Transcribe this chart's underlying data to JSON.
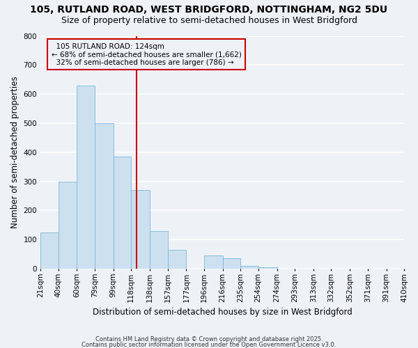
{
  "title1": "105, RUTLAND ROAD, WEST BRIDGFORD, NOTTINGHAM, NG2 5DU",
  "title2": "Size of property relative to semi-detached houses in West Bridgford",
  "xlabel": "Distribution of semi-detached houses by size in West Bridgford",
  "ylabel": "Number of semi-detached properties",
  "footnote1": "Contains HM Land Registry data © Crown copyright and database right 2025.",
  "footnote2": "Contains public sector information licensed under the Open Government Licence v3.0.",
  "bin_labels": [
    "21sqm",
    "40sqm",
    "60sqm",
    "79sqm",
    "99sqm",
    "118sqm",
    "138sqm",
    "157sqm",
    "177sqm",
    "196sqm",
    "216sqm",
    "235sqm",
    "254sqm",
    "274sqm",
    "293sqm",
    "313sqm",
    "332sqm",
    "352sqm",
    "371sqm",
    "391sqm",
    "410sqm"
  ],
  "bin_edges": [
    21,
    40,
    60,
    79,
    99,
    118,
    138,
    157,
    177,
    196,
    216,
    235,
    254,
    274,
    293,
    313,
    332,
    352,
    371,
    391,
    410
  ],
  "bar_heights": [
    125,
    300,
    630,
    500,
    385,
    270,
    130,
    65,
    0,
    45,
    35,
    10,
    5,
    0,
    0,
    0,
    0,
    0,
    0,
    0
  ],
  "bar_color": "#cce0f0",
  "bar_edge_color": "#7ab8d9",
  "property_value": 124,
  "vline_color": "#cc0000",
  "annotation_box_color": "#cc0000",
  "annotation_text_color": "#000000",
  "annotation_label": "105 RUTLAND ROAD: 124sqm",
  "annotation_pct_smaller": "68% of semi-detached houses are smaller (1,662)",
  "annotation_pct_larger": "32% of semi-detached houses are larger (786)",
  "ylim": [
    0,
    800
  ],
  "yticks": [
    0,
    100,
    200,
    300,
    400,
    500,
    600,
    700,
    800
  ],
  "background_color": "#eef2f7",
  "grid_color": "#ffffff",
  "title1_fontsize": 10,
  "title2_fontsize": 9,
  "axis_label_fontsize": 8.5,
  "tick_fontsize": 7.5,
  "annotation_fontsize": 7.5,
  "footnote_fontsize": 6.0
}
